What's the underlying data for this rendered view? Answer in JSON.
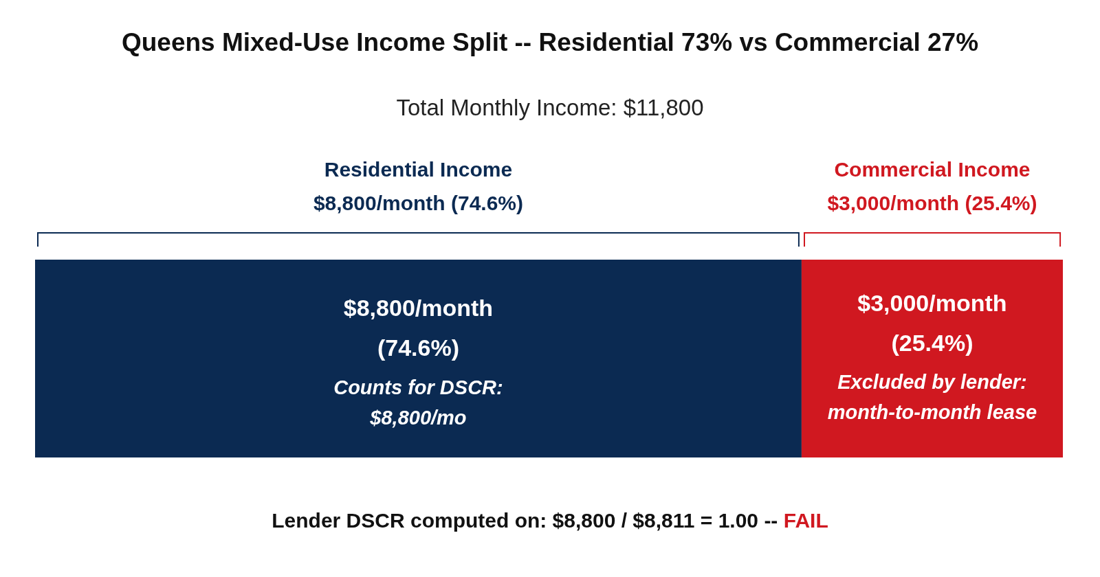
{
  "chart_data": {
    "type": "bar",
    "orientation": "horizontal",
    "stacked": true,
    "title": "Queens Mixed-Use Income Split -- Residential 73% vs Commercial 27%",
    "subtitle": "Total Monthly Income: $11,800",
    "categories": [
      null
    ],
    "xlim": [
      0,
      11800
    ],
    "tick_labels": false,
    "grid": false,
    "legend": "top",
    "series": [
      {
        "name": "Residential Income",
        "color": "#0b2a52",
        "values": [
          8800
        ],
        "value_labels": [
          "$8,800/month (74.6%)"
        ]
      },
      {
        "name": "Commercial Income",
        "color": "#d01820",
        "values": [
          3000
        ],
        "value_labels": [
          "$3,000/month (25.4%)"
        ]
      }
    ],
    "annotations": [
      "$8,800/month (74.6%)",
      "$3,000/month (25.4%)",
      "Counts for DSCR: $8,800/mo",
      "Excluded by lender: month-to-month lease",
      "Lender DSCR computed on: $8,800 / $8,811 = 1.00 -- FAIL"
    ]
  }
}
